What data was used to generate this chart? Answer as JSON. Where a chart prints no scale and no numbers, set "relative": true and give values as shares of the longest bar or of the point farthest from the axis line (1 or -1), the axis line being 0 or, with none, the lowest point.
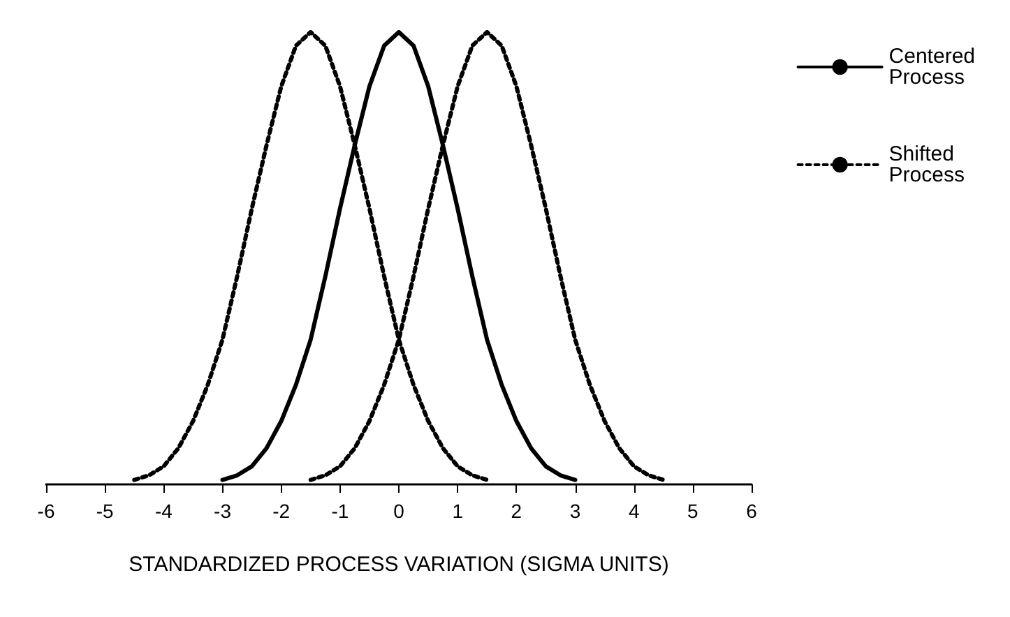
{
  "chart_data": {
    "type": "line",
    "relative": true,
    "xlabel": "STANDARDIZED PROCESS VARIATION (SIGMA UNITS)",
    "xlim": [
      -6,
      6
    ],
    "xticks": [
      -6,
      -5,
      -4,
      -3,
      -2,
      -1,
      0,
      1,
      2,
      3,
      4,
      5,
      6
    ],
    "tick_labels": "x",
    "grid": false,
    "legend": "right",
    "marker": "none",
    "series": [
      {
        "name": "Centered Process",
        "color": "#000000",
        "line_style": "solid",
        "x": [
          -3,
          -2.75,
          -2.5,
          -2.25,
          -2,
          -1.75,
          -1.5,
          -1.25,
          -1,
          -0.75,
          -0.5,
          -0.25,
          0,
          0.25,
          0.5,
          0.75,
          1,
          1.25,
          1.5,
          1.75,
          2,
          2.25,
          2.5,
          2.75,
          3
        ],
        "values": [
          0.01,
          0.02,
          0.04,
          0.08,
          0.14,
          0.22,
          0.32,
          0.46,
          0.61,
          0.75,
          0.88,
          0.97,
          1,
          0.97,
          0.88,
          0.75,
          0.61,
          0.46,
          0.32,
          0.22,
          0.14,
          0.08,
          0.04,
          0.02,
          0.01
        ]
      },
      {
        "name": "Shifted Process",
        "color": "#000000",
        "line_style": "dotted",
        "x": [
          -4.5,
          -4.25,
          -4,
          -3.75,
          -3.5,
          -3.25,
          -3,
          -2.75,
          -2.5,
          -2.25,
          -2,
          -1.75,
          -1.5,
          -1.25,
          -1,
          -0.75,
          -0.5,
          -0.25,
          0,
          0.25,
          0.5,
          0.75,
          1,
          1.25,
          1.5
        ],
        "values": [
          0.01,
          0.02,
          0.04,
          0.08,
          0.14,
          0.22,
          0.32,
          0.46,
          0.61,
          0.75,
          0.88,
          0.97,
          1,
          0.97,
          0.88,
          0.75,
          0.61,
          0.46,
          0.32,
          0.22,
          0.14,
          0.08,
          0.04,
          0.02,
          0.01
        ]
      },
      {
        "color": "#000000",
        "line_style": "dotted",
        "x": [
          -1.5,
          -1.25,
          -1,
          -0.75,
          -0.5,
          -0.25,
          0,
          0.25,
          0.5,
          0.75,
          1,
          1.25,
          1.5,
          1.75,
          2,
          2.25,
          2.5,
          2.75,
          3,
          3.25,
          3.5,
          3.75,
          4,
          4.25,
          4.5
        ],
        "values": [
          0.01,
          0.02,
          0.04,
          0.08,
          0.14,
          0.22,
          0.32,
          0.46,
          0.61,
          0.75,
          0.88,
          0.97,
          1,
          0.97,
          0.88,
          0.75,
          0.61,
          0.46,
          0.32,
          0.22,
          0.14,
          0.08,
          0.04,
          0.02,
          0.01
        ]
      }
    ]
  }
}
